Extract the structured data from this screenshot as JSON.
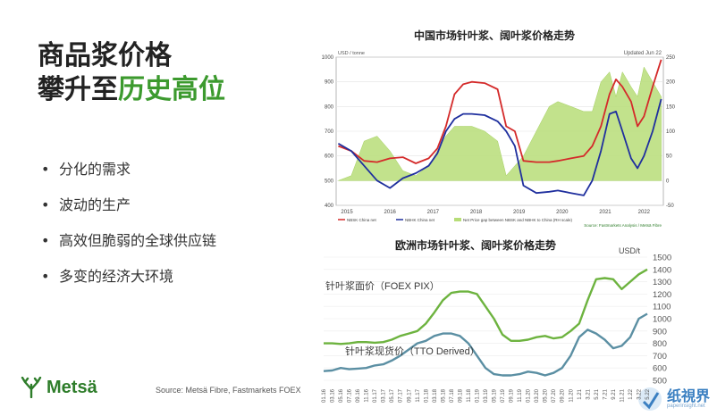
{
  "slide": {
    "title_line1": "商品浆价格",
    "title_line2_plain": "攀升至",
    "title_line2_accent": "历史高位",
    "bullets": [
      "分化的需求",
      "波动的生产",
      "高效但脆弱的全球供应链",
      "多变的经济大环境"
    ],
    "logo_text": "Metsä",
    "source": "Source: Metsä Fibre, Fastmarkets FOEX",
    "watermark": "纸視界",
    "watermark_url": "paperinsight.net",
    "accent_color": "#3c9a2e"
  },
  "chart_data": [
    {
      "type": "line",
      "title": "中国市场针叶浆、阔叶浆价格走势",
      "ylabel": "USD / tonne",
      "note": "Updated Jun 22",
      "source_note": "Source: Fastmarkets Analysis / Metsä Fibre",
      "ylim": [
        400,
        1000
      ],
      "y2lim": [
        -50,
        250
      ],
      "yticks": [
        400,
        500,
        600,
        700,
        800,
        900,
        1000
      ],
      "y2ticks": [
        -50,
        0,
        50,
        100,
        150,
        200,
        250
      ],
      "xticks": [
        "2015",
        "2016",
        "2017",
        "2018",
        "2019",
        "2020",
        "2021",
        "2022"
      ],
      "xticks_at": [
        2015.1,
        2016.1,
        2017.1,
        2018.1,
        2019.1,
        2020.1,
        2021.1,
        2022.0
      ],
      "xrange": [
        2014.85,
        2022.45
      ],
      "series": [
        {
          "name": "NBSK China net",
          "color": "#d42a2a",
          "x": [
            2014.9,
            2015.2,
            2015.5,
            2015.8,
            2016.1,
            2016.4,
            2016.7,
            2017.0,
            2017.2,
            2017.4,
            2017.6,
            2017.8,
            2018.0,
            2018.3,
            2018.6,
            2018.8,
            2019.0,
            2019.2,
            2019.5,
            2019.8,
            2020.0,
            2020.3,
            2020.6,
            2020.8,
            2021.0,
            2021.2,
            2021.35,
            2021.5,
            2021.7,
            2021.85,
            2022.0,
            2022.2,
            2022.4
          ],
          "values": [
            640,
            620,
            580,
            575,
            590,
            595,
            570,
            590,
            630,
            720,
            850,
            890,
            900,
            895,
            870,
            720,
            700,
            580,
            575,
            575,
            580,
            590,
            600,
            640,
            720,
            850,
            910,
            880,
            820,
            720,
            760,
            880,
            990
          ]
        },
        {
          "name": "NBHK China net",
          "color": "#1f2f9e",
          "x": [
            2014.9,
            2015.2,
            2015.5,
            2015.8,
            2016.1,
            2016.4,
            2016.7,
            2017.0,
            2017.2,
            2017.4,
            2017.6,
            2017.8,
            2018.0,
            2018.3,
            2018.6,
            2018.8,
            2019.0,
            2019.2,
            2019.5,
            2019.8,
            2020.0,
            2020.3,
            2020.6,
            2020.8,
            2021.0,
            2021.2,
            2021.35,
            2021.5,
            2021.7,
            2021.85,
            2022.0,
            2022.2,
            2022.4
          ],
          "values": [
            650,
            620,
            560,
            500,
            470,
            510,
            530,
            560,
            610,
            700,
            750,
            770,
            770,
            765,
            740,
            700,
            640,
            480,
            450,
            455,
            460,
            450,
            440,
            500,
            620,
            770,
            780,
            700,
            590,
            550,
            600,
            700,
            830
          ]
        },
        {
          "name": "Net Price gap between NBSK and NBHK to China (RH scale)",
          "type": "area",
          "axis": "right",
          "color": "#b7dd78",
          "x": [
            2014.9,
            2015.2,
            2015.5,
            2015.8,
            2016.1,
            2016.4,
            2016.7,
            2017.0,
            2017.2,
            2017.4,
            2017.6,
            2017.8,
            2018.0,
            2018.3,
            2018.6,
            2018.8,
            2019.0,
            2019.2,
            2019.5,
            2019.8,
            2020.0,
            2020.3,
            2020.6,
            2020.8,
            2021.0,
            2021.2,
            2021.35,
            2021.5,
            2021.7,
            2021.85,
            2022.0,
            2022.2,
            2022.4
          ],
          "values": [
            0,
            10,
            80,
            90,
            60,
            20,
            10,
            30,
            60,
            90,
            110,
            110,
            110,
            100,
            80,
            10,
            30,
            50,
            100,
            150,
            160,
            150,
            140,
            140,
            200,
            220,
            170,
            220,
            190,
            170,
            230,
            200,
            170
          ]
        }
      ]
    },
    {
      "type": "line",
      "title": "欧洲市场针叶浆、阔叶浆价格走势",
      "ylabel": "USD/t",
      "ylim": [
        500,
        1500
      ],
      "yticks": [
        500,
        600,
        700,
        800,
        900,
        1000,
        1100,
        1200,
        1300,
        1400,
        1500
      ],
      "categories": [
        "01.16",
        "03.16",
        "05.16",
        "07.16",
        "09.16",
        "11.16",
        "01.17",
        "03.17",
        "05.17",
        "07.17",
        "09.17",
        "11.17",
        "01.18",
        "03.18",
        "05.18",
        "07.18",
        "09.18",
        "11.18",
        "01.19",
        "03.19",
        "05.19",
        "07.19",
        "09.19",
        "11.19",
        "01.20",
        "03.20",
        "05.20",
        "07.20",
        "09.20",
        "11.20",
        "1.21",
        "3.21",
        "5.21",
        "7.21",
        "9.21",
        "11.21",
        "1.22",
        "3.22",
        "5.22"
      ],
      "series": [
        {
          "name": "针叶浆面价（FOEX PIX）",
          "color": "#6db33f",
          "values": [
            800,
            800,
            795,
            800,
            810,
            810,
            805,
            810,
            830,
            860,
            880,
            900,
            960,
            1050,
            1150,
            1210,
            1220,
            1220,
            1200,
            1100,
            1000,
            870,
            820,
            820,
            830,
            850,
            860,
            840,
            850,
            900,
            960,
            1150,
            1320,
            1330,
            1320,
            1240,
            1300,
            1360,
            1400
          ]
        },
        {
          "name": "针叶浆现货价（TTO Derived）",
          "color": "#5b8fa3",
          "values": [
            575,
            580,
            600,
            590,
            595,
            600,
            620,
            630,
            660,
            700,
            750,
            800,
            820,
            860,
            880,
            880,
            860,
            800,
            700,
            600,
            550,
            540,
            540,
            550,
            570,
            560,
            540,
            560,
            600,
            700,
            850,
            910,
            880,
            830,
            760,
            780,
            850,
            1000,
            1040
          ]
        }
      ]
    }
  ]
}
